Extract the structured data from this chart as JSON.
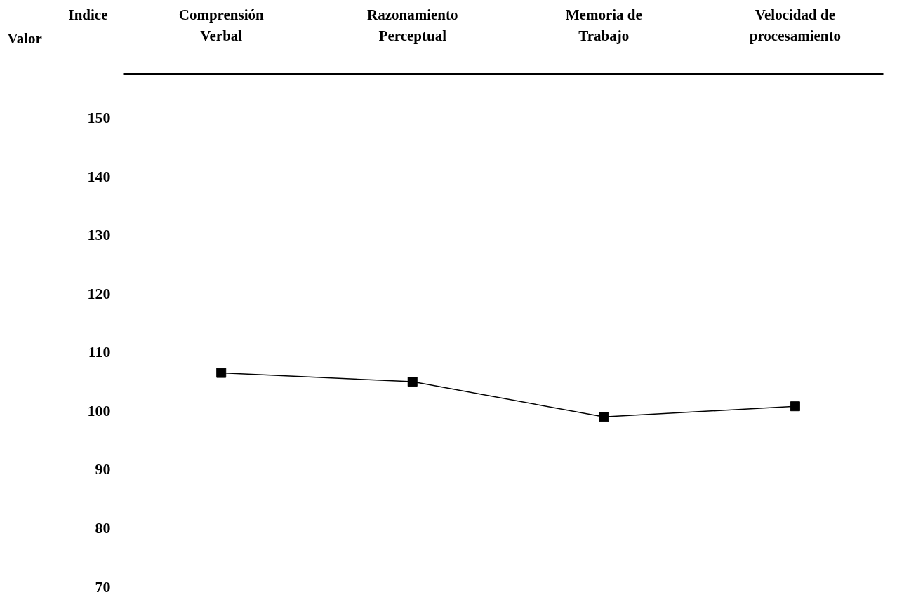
{
  "chart_data": {
    "type": "line",
    "xlabel": "Indice",
    "ylabel": "Valor",
    "categories": [
      "Comprensión\nVerbal",
      "Razonamiento\nPerceptual",
      "Memoria de\nTrabajo",
      "Velocidad de\nprocesamiento"
    ],
    "series": [
      {
        "color": "#000000",
        "values": [
          106.5,
          105.0,
          99.0,
          100.8
        ]
      }
    ],
    "ylim": [
      70,
      157.5
    ],
    "yticks": [
      70,
      80,
      90,
      100,
      110,
      120,
      130,
      140,
      150
    ],
    "marker": "square",
    "line_style": "solid",
    "grid": false
  }
}
